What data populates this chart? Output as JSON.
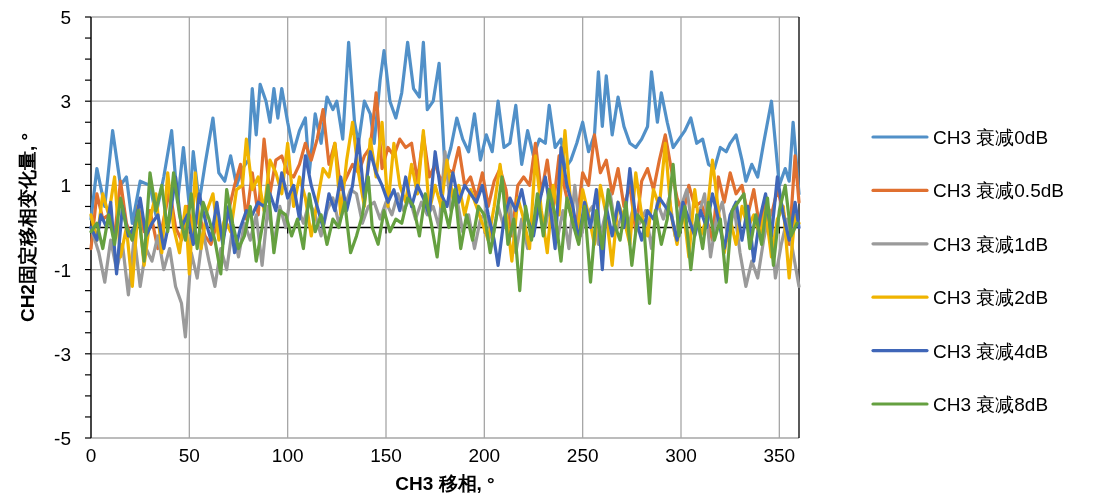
{
  "chart_data": {
    "type": "line",
    "xlabel": "CH3 移相, °",
    "ylabel": "CH2固定移相变化量, °",
    "xlim": [
      0,
      360
    ],
    "ylim": [
      -5,
      5
    ],
    "xticks": [
      0,
      50,
      100,
      150,
      200,
      250,
      300,
      350
    ],
    "yticks": [
      -5,
      -3,
      -1,
      1,
      3,
      5
    ],
    "grid": true,
    "legend": "right",
    "marker": "none",
    "line_style": "solid",
    "series": [
      {
        "name": "CH3 衰减0dB",
        "color": "#5190c8",
        "x": [
          0,
          3,
          7,
          11,
          15,
          18,
          21,
          25,
          30,
          33,
          37,
          41,
          44,
          47,
          50,
          52,
          55,
          58,
          62,
          65,
          68,
          71,
          74,
          77,
          80,
          82,
          84,
          86,
          89,
          91,
          93,
          95,
          97,
          100,
          103,
          106,
          109,
          111,
          114,
          117,
          120,
          123,
          125,
          128,
          131,
          134,
          136,
          139,
          142,
          144,
          147,
          149,
          152,
          155,
          158,
          161,
          164,
          167,
          169,
          171,
          174,
          177,
          180,
          183,
          186,
          189,
          192,
          195,
          198,
          201,
          204,
          207,
          210,
          213,
          216,
          219,
          222,
          225,
          228,
          231,
          233,
          236,
          239,
          241,
          244,
          247,
          250,
          253,
          256,
          258,
          260,
          262,
          265,
          268,
          271,
          274,
          277,
          280,
          283,
          285,
          288,
          290,
          293,
          296,
          299,
          302,
          305,
          308,
          311,
          314,
          317,
          320,
          323,
          325,
          328,
          331,
          333,
          336,
          339,
          342,
          346,
          350,
          353,
          355,
          357,
          360
        ],
        "values": [
          0.2,
          1.4,
          0.5,
          2.3,
          1.0,
          1.2,
          0.1,
          1.1,
          1.0,
          0.3,
          1.2,
          2.3,
          0.6,
          1.9,
          0.5,
          1.8,
          0.6,
          1.5,
          2.6,
          1.3,
          1.1,
          1.7,
          1.0,
          1.4,
          1.6,
          3.3,
          2.2,
          3.4,
          3.0,
          2.5,
          3.3,
          2.6,
          3.3,
          2.5,
          1.8,
          2.3,
          2.6,
          1.3,
          2.7,
          2.0,
          3.1,
          2.8,
          3.0,
          2.1,
          4.4,
          2.5,
          2.0,
          3.0,
          2.7,
          2.0,
          3.5,
          4.2,
          3.0,
          2.6,
          3.2,
          4.4,
          3.3,
          3.1,
          4.4,
          2.8,
          3.0,
          3.9,
          1.4,
          1.9,
          2.6,
          2.1,
          1.8,
          2.7,
          1.6,
          2.2,
          1.8,
          3.0,
          1.9,
          2.0,
          2.9,
          1.5,
          2.3,
          1.7,
          2.1,
          2.0,
          2.9,
          1.9,
          2.1,
          1.4,
          1.6,
          2.0,
          2.5,
          1.8,
          2.2,
          3.7,
          2.4,
          3.6,
          2.2,
          3.1,
          2.4,
          2.0,
          1.9,
          2.1,
          2.4,
          3.7,
          2.5,
          3.2,
          2.5,
          1.9,
          2.1,
          2.3,
          2.6,
          2.0,
          2.1,
          1.5,
          1.4,
          1.9,
          1.8,
          2.0,
          2.2,
          1.6,
          1.1,
          1.5,
          1.2,
          2.0,
          3.0,
          1.0,
          1.4,
          1.1,
          2.5,
          0.8
        ]
      },
      {
        "name": "CH3 衰减0.5dB",
        "color": "#e07030",
        "x": [
          0,
          3,
          6,
          9,
          12,
          15,
          18,
          21,
          24,
          27,
          30,
          34,
          37,
          40,
          43,
          46,
          49,
          52,
          55,
          58,
          61,
          64,
          67,
          70,
          73,
          76,
          79,
          82,
          85,
          88,
          91,
          94,
          97,
          100,
          103,
          106,
          109,
          112,
          115,
          118,
          121,
          124,
          127,
          130,
          133,
          136,
          139,
          142,
          145,
          148,
          151,
          154,
          157,
          160,
          163,
          166,
          169,
          172,
          175,
          178,
          181,
          184,
          187,
          190,
          193,
          196,
          199,
          202,
          205,
          208,
          211,
          214,
          217,
          220,
          223,
          226,
          229,
          232,
          235,
          238,
          241,
          244,
          247,
          250,
          253,
          256,
          259,
          262,
          265,
          268,
          271,
          274,
          277,
          280,
          283,
          286,
          289,
          292,
          295,
          298,
          301,
          304,
          307,
          310,
          313,
          316,
          319,
          322,
          325,
          328,
          331,
          334,
          337,
          340,
          343,
          346,
          349,
          352,
          355,
          358,
          360
        ],
        "values": [
          -0.5,
          0.8,
          0.2,
          0.3,
          -0.2,
          1.1,
          0.1,
          -0.3,
          0.5,
          -0.1,
          0.4,
          -0.5,
          0.2,
          0.9,
          0.0,
          -0.3,
          0.5,
          -0.1,
          0.3,
          -0.2,
          -0.4,
          0.1,
          -0.3,
          0.4,
          1.0,
          1.5,
          0.2,
          1.3,
          0.3,
          2.1,
          0.8,
          1.6,
          1.7,
          1.3,
          1.2,
          1.5,
          2.0,
          1.6,
          2.1,
          2.8,
          1.5,
          2.0,
          0.9,
          1.2,
          1.5,
          1.3,
          1.7,
          1.9,
          3.2,
          1.4,
          1.9,
          1.7,
          2.1,
          1.9,
          2.0,
          1.1,
          2.2,
          1.2,
          1.5,
          1.1,
          1.4,
          1.3,
          1.9,
          1.0,
          1.2,
          0.7,
          1.3,
          0.5,
          1.1,
          1.4,
          0.9,
          -0.2,
          1.0,
          1.2,
          1.0,
          2.0,
          0.8,
          1.6,
          0.5,
          1.7,
          0.9,
          0.3,
          0.1,
          1.3,
          1.0,
          2.2,
          1.3,
          1.6,
          0.8,
          1.4,
          0.5,
          1.0,
          -0.1,
          1.1,
          1.4,
          0.9,
          1.6,
          2.2,
          1.4,
          0.7,
          0.3,
          1.0,
          0.5,
          0.6,
          0.2,
          -0.3,
          1.2,
          0.6,
          1.3,
          0.8,
          1.0,
          0.3,
          0.9,
          0.0,
          0.6,
          0.3,
          0.9,
          0.4,
          -0.4,
          1.7,
          0.6
        ]
      },
      {
        "name": "CH3 衰减1dB",
        "color": "#9a9a9a",
        "x": [
          0,
          4,
          7,
          10,
          13,
          16,
          19,
          22,
          25,
          28,
          31,
          34,
          37,
          40,
          43,
          46,
          48,
          51,
          54,
          57,
          60,
          63,
          66,
          69,
          72,
          75,
          78,
          81,
          84,
          87,
          90,
          93,
          96,
          99,
          102,
          105,
          108,
          111,
          114,
          117,
          120,
          123,
          126,
          129,
          132,
          135,
          138,
          141,
          144,
          147,
          150,
          153,
          156,
          159,
          162,
          165,
          168,
          171,
          174,
          177,
          180,
          183,
          186,
          189,
          192,
          195,
          198,
          201,
          204,
          207,
          210,
          213,
          216,
          219,
          222,
          225,
          228,
          231,
          234,
          237,
          240,
          243,
          246,
          249,
          252,
          255,
          258,
          261,
          264,
          267,
          270,
          273,
          276,
          279,
          282,
          285,
          288,
          291,
          294,
          297,
          300,
          303,
          306,
          309,
          312,
          315,
          318,
          321,
          324,
          327,
          330,
          333,
          336,
          339,
          342,
          345,
          348,
          351,
          354,
          357,
          360
        ],
        "values": [
          0.0,
          -0.6,
          -1.3,
          -0.3,
          -1.0,
          -0.4,
          -1.6,
          -0.2,
          -1.4,
          -0.5,
          -0.8,
          -0.2,
          -1.0,
          -0.5,
          -1.4,
          -1.8,
          -2.6,
          -0.6,
          -1.2,
          -0.1,
          -0.8,
          -1.4,
          -0.5,
          -1.0,
          0.0,
          -0.7,
          0.1,
          -0.3,
          0.3,
          -0.9,
          0.5,
          -0.4,
          0.5,
          0.0,
          0.9,
          0.5,
          0.1,
          0.6,
          0.3,
          -0.2,
          0.4,
          0.7,
          0.1,
          0.5,
          0.9,
          0.8,
          0.1,
          0.5,
          0.6,
          0.2,
          0.6,
          0.3,
          0.8,
          0.4,
          0.7,
          0.2,
          0.6,
          0.3,
          0.5,
          0.0,
          1.8,
          0.4,
          0.7,
          -0.1,
          0.3,
          -0.5,
          0.2,
          0.4,
          -0.3,
          0.5,
          0.0,
          0.6,
          -0.6,
          0.2,
          -0.5,
          0.1,
          0.5,
          0.0,
          0.8,
          -0.3,
          0.4,
          -0.5,
          1.0,
          -0.2,
          0.3,
          0.5,
          -0.4,
          0.2,
          0.8,
          -0.1,
          0.3,
          0.0,
          0.5,
          0.1,
          0.4,
          -0.5,
          0.6,
          0.2,
          0.7,
          -0.2,
          0.5,
          0.9,
          -0.1,
          0.3,
          0.8,
          -0.7,
          0.2,
          0.6,
          -0.3,
          0.5,
          -0.6,
          -1.4,
          -0.8,
          -1.2,
          -0.3,
          0.4,
          -1.2,
          -0.4,
          0.2,
          -0.6,
          -1.4
        ]
      },
      {
        "name": "CH3 衰减2dB",
        "color": "#f0b400",
        "x": [
          0,
          3,
          6,
          9,
          12,
          15,
          18,
          21,
          24,
          27,
          30,
          33,
          36,
          39,
          42,
          45,
          48,
          50,
          53,
          56,
          59,
          62,
          65,
          68,
          71,
          74,
          77,
          79,
          82,
          85,
          88,
          91,
          94,
          97,
          100,
          103,
          106,
          109,
          112,
          115,
          118,
          121,
          124,
          127,
          130,
          133,
          136,
          139,
          142,
          145,
          148,
          151,
          154,
          157,
          160,
          163,
          166,
          169,
          172,
          175,
          178,
          181,
          184,
          187,
          190,
          193,
          196,
          199,
          202,
          205,
          208,
          211,
          214,
          217,
          220,
          223,
          226,
          229,
          232,
          235,
          238,
          241,
          244,
          247,
          250,
          253,
          256,
          259,
          262,
          265,
          268,
          271,
          274,
          277,
          280,
          283,
          286,
          289,
          292,
          295,
          298,
          301,
          304,
          307,
          310,
          313,
          316,
          319,
          322,
          325,
          328,
          331,
          334,
          337,
          340,
          343,
          346,
          349,
          352,
          355,
          358,
          360
        ],
        "values": [
          0.3,
          -0.3,
          0.8,
          0.3,
          1.2,
          -0.7,
          0.0,
          -1.4,
          0.5,
          -0.9,
          0.2,
          0.8,
          -0.6,
          1.3,
          0.0,
          -0.6,
          0.5,
          -1.1,
          1.3,
          -0.5,
          0.4,
          0.8,
          -0.3,
          0.2,
          -0.1,
          0.9,
          1.0,
          2.1,
          0.9,
          1.2,
          0.4,
          1.6,
          1.3,
          0.8,
          2.0,
          0.5,
          1.2,
          0.7,
          -0.2,
          0.6,
          1.4,
          1.2,
          2.0,
          0.3,
          1.6,
          2.5,
          1.3,
          0.5,
          2.1,
          1.2,
          2.5,
          0.5,
          2.0,
          1.0,
          0.6,
          1.5,
          0.8,
          2.3,
          0.4,
          1.0,
          0.5,
          1.6,
          0.7,
          1.0,
          0.3,
          0.9,
          0.5,
          0.1,
          -0.3,
          0.5,
          1.5,
          0.4,
          -0.8,
          0.7,
          0.2,
          -0.5,
          1.7,
          0.4,
          -0.6,
          1.0,
          0.3,
          2.3,
          0.5,
          -0.2,
          0.9,
          0.3,
          -0.4,
          1.0,
          0.3,
          -0.9,
          0.6,
          0.2,
          -0.4,
          1.3,
          0.3,
          -0.2,
          0.9,
          0.5,
          2.0,
          0.3,
          -0.4,
          0.5,
          -0.7,
          0.9,
          -0.2,
          0.2,
          1.6,
          0.4,
          -0.6,
          0.2,
          -0.4,
          0.5,
          0.0,
          0.3,
          -0.2,
          0.4,
          -0.7,
          0.2,
          0.5,
          -1.2,
          0.3,
          0.1
        ]
      },
      {
        "name": "CH3 衰减4dB",
        "color": "#3f66b8",
        "x": [
          0,
          3,
          5,
          8,
          10,
          13,
          16,
          19,
          22,
          25,
          28,
          31,
          34,
          37,
          40,
          43,
          46,
          49,
          52,
          55,
          58,
          61,
          64,
          67,
          70,
          73,
          76,
          79,
          82,
          85,
          88,
          91,
          94,
          97,
          100,
          103,
          106,
          109,
          112,
          115,
          118,
          121,
          124,
          127,
          130,
          133,
          136,
          139,
          142,
          145,
          148,
          151,
          154,
          157,
          160,
          163,
          166,
          169,
          172,
          175,
          178,
          181,
          184,
          187,
          190,
          193,
          196,
          199,
          202,
          205,
          207,
          210,
          213,
          216,
          219,
          222,
          225,
          228,
          231,
          234,
          236,
          239,
          242,
          245,
          248,
          251,
          254,
          257,
          260,
          262,
          265,
          268,
          271,
          274,
          277,
          280,
          283,
          286,
          289,
          292,
          295,
          298,
          301,
          304,
          307,
          310,
          313,
          316,
          319,
          322,
          325,
          328,
          331,
          334,
          337,
          340,
          343,
          346,
          349,
          352,
          355,
          358,
          360
        ],
        "values": [
          0.0,
          -0.3,
          0.3,
          0.0,
          0.6,
          -1.1,
          0.5,
          -0.2,
          0.0,
          0.7,
          -0.2,
          0.1,
          0.3,
          -0.5,
          0.2,
          1.2,
          0.0,
          0.3,
          -0.4,
          0.8,
          0.2,
          -0.3,
          0.6,
          -0.4,
          0.5,
          -0.6,
          0.0,
          0.4,
          0.3,
          0.6,
          0.5,
          0.8,
          0.4,
          1.3,
          0.7,
          1.0,
          0.2,
          1.7,
          1.0,
          0.5,
          0.0,
          0.8,
          0.4,
          1.2,
          0.4,
          1.0,
          2.1,
          0.7,
          1.8,
          1.3,
          1.0,
          0.6,
          0.9,
          0.4,
          1.2,
          0.5,
          1.0,
          0.7,
          0.3,
          1.8,
          0.8,
          0.5,
          1.3,
          0.6,
          1.0,
          0.8,
          0.6,
          1.0,
          0.3,
          -0.3,
          -0.9,
          0.2,
          0.7,
          0.4,
          0.9,
          0.2,
          -0.2,
          0.6,
          1.2,
          0.3,
          -0.5,
          1.9,
          1.0,
          0.5,
          -0.3,
          0.6,
          0.0,
          0.9,
          -1.0,
          0.5,
          -0.2,
          0.6,
          0.0,
          1.4,
          0.2,
          -0.3,
          0.4,
          0.2,
          0.7,
          0.5,
          0.3,
          -0.3,
          0.6,
          0.2,
          -0.2,
          0.4,
          0.0,
          0.8,
          0.2,
          -0.5,
          0.3,
          0.6,
          -0.3,
          0.5,
          -0.8,
          0.2,
          0.8,
          -0.2,
          1.2,
          0.3,
          -0.3,
          0.6,
          0.0
        ]
      },
      {
        "name": "CH3 衰减8dB",
        "color": "#65a040",
        "x": [
          0,
          3,
          6,
          9,
          12,
          15,
          18,
          21,
          24,
          27,
          30,
          33,
          36,
          39,
          42,
          45,
          48,
          51,
          54,
          57,
          60,
          63,
          66,
          69,
          72,
          75,
          78,
          81,
          84,
          87,
          90,
          93,
          96,
          99,
          102,
          105,
          108,
          111,
          114,
          117,
          120,
          123,
          126,
          129,
          132,
          135,
          138,
          141,
          143,
          146,
          149,
          152,
          155,
          158,
          161,
          164,
          167,
          170,
          173,
          176,
          179,
          182,
          185,
          188,
          191,
          194,
          197,
          200,
          203,
          206,
          209,
          212,
          215,
          218,
          221,
          224,
          227,
          230,
          233,
          236,
          239,
          242,
          245,
          248,
          251,
          254,
          257,
          260,
          263,
          266,
          269,
          272,
          275,
          278,
          281,
          284,
          287,
          290,
          293,
          296,
          299,
          302,
          305,
          308,
          311,
          314,
          317,
          320,
          323,
          326,
          329,
          332,
          335,
          338,
          341,
          344,
          347,
          350,
          353,
          356,
          359
        ],
        "values": [
          -0.1,
          0.1,
          -0.5,
          0.3,
          -0.4,
          0.7,
          0.0,
          -0.3,
          0.4,
          -0.8,
          1.3,
          0.4,
          1.0,
          -0.1,
          1.3,
          0.3,
          -0.3,
          0.8,
          -0.5,
          0.6,
          0.2,
          -0.3,
          -1.1,
          0.9,
          0.1,
          -0.5,
          -0.2,
          0.5,
          -0.8,
          0.0,
          1.0,
          -0.6,
          0.4,
          0.3,
          -0.2,
          0.2,
          -0.5,
          0.8,
          -0.1,
          0.3,
          -0.4,
          0.2,
          0.0,
          0.6,
          -0.6,
          -0.2,
          0.3,
          1.2,
          0.0,
          -0.4,
          0.4,
          -0.1,
          0.2,
          0.1,
          0.7,
          0.5,
          -0.2,
          0.8,
          0.1,
          -0.7,
          0.6,
          0.0,
          0.9,
          -0.5,
          0.3,
          -0.3,
          0.5,
          0.3,
          -0.6,
          0.2,
          1.2,
          -0.4,
          0.2,
          -1.5,
          0.5,
          -0.3,
          0.8,
          -0.2,
          0.9,
          0.3,
          -0.8,
          0.7,
          0.1,
          -0.4,
          0.5,
          -1.3,
          0.4,
          -0.5,
          0.9,
          0.1,
          -0.3,
          0.6,
          -0.9,
          0.3,
          0.1,
          -1.8,
          0.4,
          -0.4,
          0.2,
          1.5,
          -0.2,
          0.5,
          -1.0,
          0.3,
          -0.5,
          0.6,
          -0.3,
          0.2,
          -1.3,
          0.4,
          0.6,
          0.8,
          -0.5,
          0.3,
          -0.4,
          0.7,
          -0.9,
          0.4,
          1.0,
          -0.2,
          0.1
        ]
      }
    ]
  }
}
